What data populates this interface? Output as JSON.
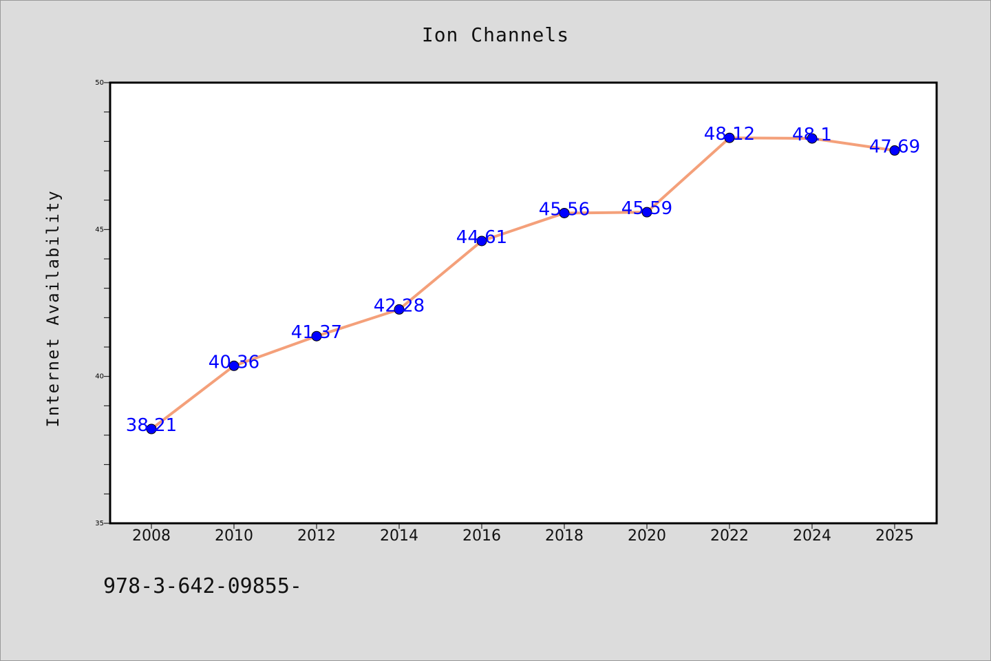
{
  "colors": {
    "background": "#dcdcdc",
    "plot_background": "#ffffff",
    "line": "#f4a07a",
    "marker": "#0000ff",
    "data_label": "#0000ff"
  },
  "footnote": "978-3-642-09855-",
  "chart_data": {
    "type": "line",
    "title": "Ion Channels",
    "xlabel": "",
    "ylabel": "Internet Availability",
    "categories": [
      "2008",
      "2010",
      "2012",
      "2014",
      "2016",
      "2018",
      "2020",
      "2022",
      "2024",
      "2025"
    ],
    "series": [
      {
        "values": [
          38.21,
          40.36,
          41.37,
          42.28,
          44.61,
          45.56,
          45.59,
          48.12,
          48.1,
          47.69
        ],
        "labels": [
          "38.21",
          "40.36",
          "41.37",
          "42.28",
          "44.61",
          "45.56",
          "45.59",
          "48.12",
          "48.1",
          "47.69"
        ]
      }
    ],
    "ylim": [
      35,
      50
    ],
    "yticks": [
      35,
      40,
      45,
      50
    ],
    "yticks_minor_step": 1,
    "grid": false,
    "legend": "none"
  }
}
